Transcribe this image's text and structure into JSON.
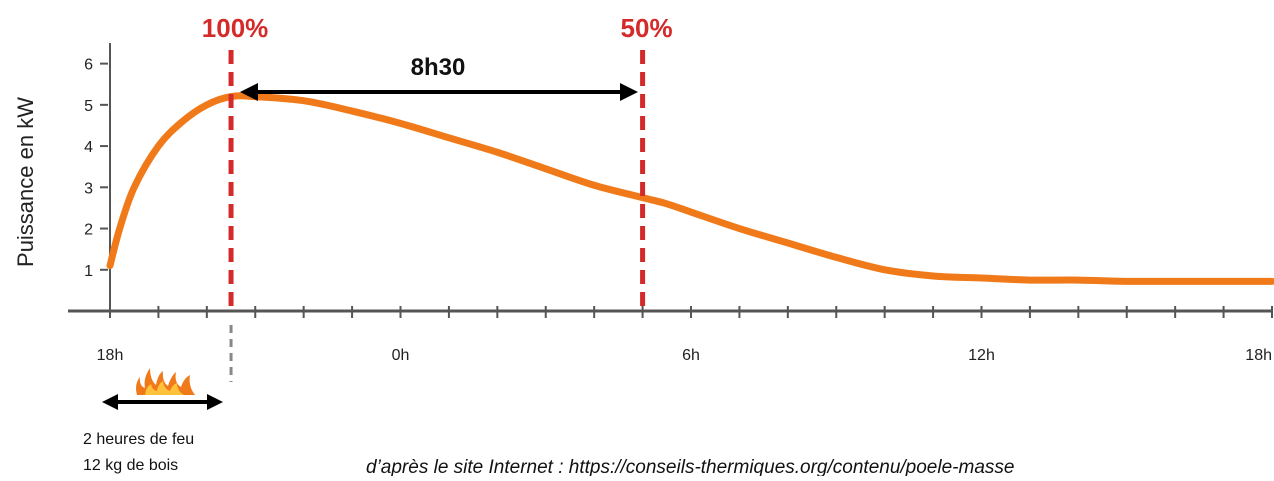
{
  "chart_data": {
    "type": "line",
    "title": "",
    "xlabel": "",
    "ylabel": "Puissance en kW",
    "xlim": [
      0,
      24
    ],
    "ylim": [
      0,
      6.5
    ],
    "x_ticks": [
      {
        "x": 0,
        "label": "18h"
      },
      {
        "x": 6,
        "label": "0h"
      },
      {
        "x": 12,
        "label": "6h"
      },
      {
        "x": 18,
        "label": "12h"
      },
      {
        "x": 24,
        "label": "18h"
      }
    ],
    "y_ticks": [
      1,
      2,
      3,
      4,
      5,
      6
    ],
    "series": [
      {
        "color": "#f07a1a",
        "x": [
          0,
          0.2,
          0.5,
          1.0,
          1.5,
          2.0,
          2.5,
          3.0,
          4.0,
          5.0,
          6.0,
          7.0,
          8.0,
          9.0,
          10.0,
          11.0,
          11.5,
          12.0,
          13.0,
          14.0,
          15.0,
          16.0,
          17.0,
          18.0,
          19.0,
          20.0,
          21.0,
          22.0,
          23.0,
          24.0
        ],
        "y": [
          1.1,
          2.0,
          3.0,
          4.0,
          4.6,
          5.0,
          5.2,
          5.2,
          5.1,
          4.85,
          4.55,
          4.2,
          3.85,
          3.45,
          3.05,
          2.75,
          2.6,
          2.4,
          2.0,
          1.65,
          1.3,
          1.0,
          0.85,
          0.8,
          0.75,
          0.75,
          0.72,
          0.72,
          0.72,
          0.72
        ]
      }
    ],
    "markers": [
      {
        "x": 2.5,
        "label": "100%",
        "color": "#d42a2a"
      },
      {
        "x": 11,
        "label": "50%",
        "color": "#d42a2a"
      }
    ],
    "duration_label": "8h30",
    "grid": false,
    "legend": "none"
  },
  "fire": {
    "line1": "2 heures de feu",
    "line2": "12 kg de bois"
  },
  "source": "d’après le site Internet : https://conseils-thermiques.org/contenu/poele-masse"
}
